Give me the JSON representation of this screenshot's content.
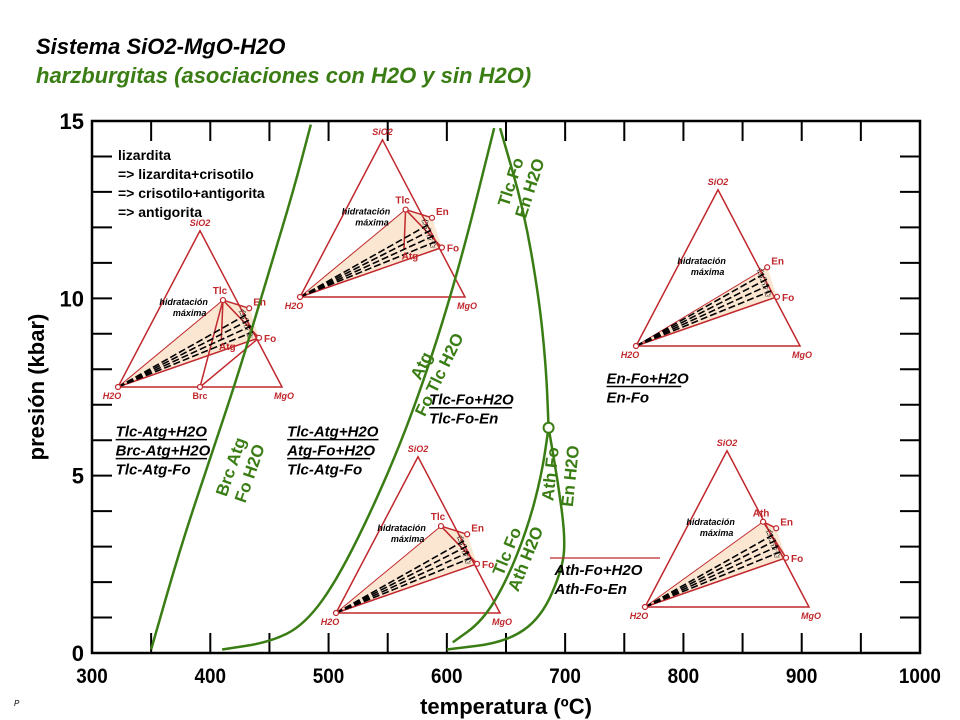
{
  "title": "Sistema SiO2-MgO-H2O",
  "subtitle": "harzburgitas (asociaciones con H2O y sin H2O)",
  "footer_mark": "P",
  "colors": {
    "curve": "#3a7d14",
    "triangle": "#c0282d",
    "text": "#000000",
    "fill": "#fbe6d2"
  },
  "chart_data": {
    "type": "phase-diagram",
    "xlabel": "temperatura (ºC)",
    "ylabel": "presión (kbar)",
    "xlim": [
      300,
      1000
    ],
    "ylim": [
      0,
      15
    ],
    "x_ticks": [
      300,
      400,
      500,
      600,
      700,
      800,
      900,
      1000
    ],
    "y_ticks": [
      0,
      5,
      10,
      15
    ],
    "x_minor_step": 50,
    "y_minor_step": 1,
    "legend_note": [
      "lizardita",
      "=> lizardita+crisotilo",
      "=> crisotilo+antigorita",
      "=> antigorita"
    ],
    "curves": [
      {
        "name": "Brc Atg = Fo H2O",
        "label_top": "Brc Atg",
        "label_bottom": "Fo H2O",
        "points": [
          [
            350,
            0.1
          ],
          [
            375,
            3
          ],
          [
            400,
            5.5
          ],
          [
            425,
            8
          ],
          [
            450,
            10.8
          ],
          [
            470,
            13
          ],
          [
            485,
            14.9
          ]
        ]
      },
      {
        "name": "Atg = Fo Tlc H2O",
        "label_top": "Atg",
        "label_bottom": "Fo Tlc H2O",
        "points": [
          [
            410,
            0.1
          ],
          [
            450,
            0.3
          ],
          [
            480,
            0.8
          ],
          [
            510,
            2.2
          ],
          [
            550,
            5
          ],
          [
            580,
            7.6
          ],
          [
            610,
            10.8
          ],
          [
            640,
            14.8
          ]
        ]
      },
      {
        "name": "Tlc Fo = En H2O",
        "label_top": "Tlc Fo",
        "label_bottom": "En H2O",
        "points": [
          [
            645,
            14.8
          ],
          [
            665,
            12.5
          ],
          [
            678,
            10
          ],
          [
            684,
            8
          ],
          [
            686,
            6.35
          ]
        ]
      },
      {
        "name": "Tlc Fo = Ath H2O",
        "label_top": "Tlc Fo",
        "label_bottom": "Ath H2O",
        "points": [
          [
            686,
            6.35
          ],
          [
            680,
            5
          ],
          [
            668,
            3.5
          ],
          [
            650,
            2
          ],
          [
            630,
            0.9
          ],
          [
            605,
            0.3
          ]
        ]
      },
      {
        "name": "Ath Fo = En H2O",
        "label_top": "Ath Fo",
        "label_bottom": "En H2O",
        "points": [
          [
            686,
            6.35
          ],
          [
            694,
            4.8
          ],
          [
            700,
            3.3
          ],
          [
            698,
            2.4
          ],
          [
            680,
            1.0
          ],
          [
            650,
            0.3
          ],
          [
            600,
            0.1
          ]
        ]
      }
    ],
    "invariant_point": {
      "T": 686,
      "P": 6.35
    },
    "field_labels": [
      {
        "lines": [
          "Tlc-Atg+H2O",
          "Brc-Atg+H2O",
          "Tlc-Atg-Fo"
        ],
        "underlined": [
          true,
          true,
          false
        ],
        "T": 320,
        "P": 6.1
      },
      {
        "lines": [
          "Tlc-Atg+H2O",
          "Atg-Fo+H2O",
          "Tlc-Atg-Fo"
        ],
        "underlined": [
          true,
          true,
          false
        ],
        "T": 465,
        "P": 6.1
      },
      {
        "lines": [
          "Tlc-Fo+H2O",
          "Tlc-Fo-En"
        ],
        "underlined": [
          true,
          false
        ],
        "T": 585,
        "P": 7.0
      },
      {
        "lines": [
          "En-Fo+H2O",
          "En-Fo"
        ],
        "underlined": [
          true,
          false
        ],
        "T": 735,
        "P": 7.6
      },
      {
        "lines": [
          "Ath-Fo+H2O",
          "Ath-Fo-En"
        ],
        "underlined": [
          false,
          false
        ],
        "T": 691,
        "P": 2.2
      }
    ],
    "ternaries": [
      {
        "id": "t1",
        "apex": "SiO2",
        "left": "H2O",
        "right": "MgO",
        "phases": [
          "Tlc",
          "En",
          "Fo",
          "Atg",
          "Brc"
        ],
        "note": "hidratación máxima"
      },
      {
        "id": "t2",
        "apex": "SiO2",
        "left": "H2O",
        "right": "MgO",
        "phases": [
          "Tlc",
          "En",
          "Fo",
          "Atg"
        ],
        "note": "hidratación máxima"
      },
      {
        "id": "t3",
        "apex": "SiO2",
        "left": "H2O",
        "right": "MgO",
        "phases": [
          "En",
          "Fo"
        ],
        "note": "hidratación máxima"
      },
      {
        "id": "t4",
        "apex": "SiO2",
        "left": "H2O",
        "right": "MgO",
        "phases": [
          "Tlc",
          "En",
          "Fo"
        ],
        "note": "hidratación máxima"
      },
      {
        "id": "t5",
        "apex": "SiO2",
        "left": "H2O",
        "right": "MgO",
        "phases": [
          "Ath",
          "En",
          "Fo"
        ],
        "note": "hidratación máxima"
      }
    ]
  }
}
